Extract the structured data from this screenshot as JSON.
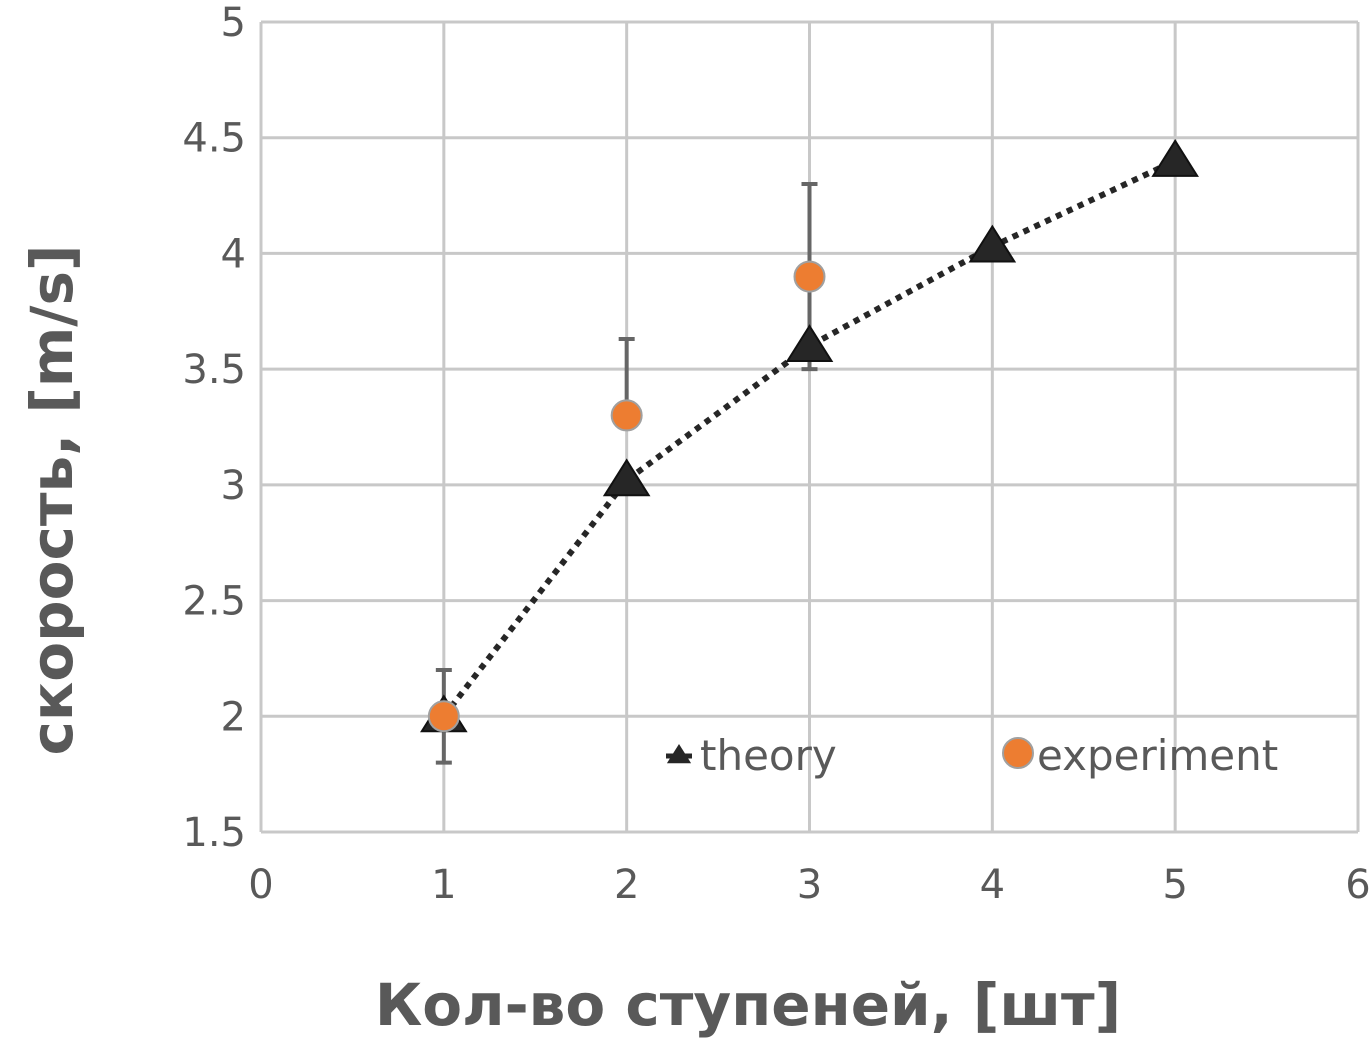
{
  "chart_data": {
    "type": "scatter",
    "title": "",
    "xlabel": "Кол-во ступеней, [шт]",
    "ylabel": "скорость, [m/s]",
    "xlim": [
      0,
      6
    ],
    "ylim": [
      1.5,
      5
    ],
    "xticks": [
      0,
      1,
      2,
      3,
      4,
      5,
      6
    ],
    "yticks": [
      1.5,
      2,
      2.5,
      3,
      3.5,
      4,
      4.5,
      5
    ],
    "xtick_labels": [
      "0",
      "1",
      "2",
      "3",
      "4",
      "5",
      "6"
    ],
    "ytick_labels": [
      "1.5",
      "2",
      "2.5",
      "3",
      "3.5",
      "4",
      "4.5",
      "5"
    ],
    "grid": true,
    "legend_position": "bottom-right",
    "series": [
      {
        "name": "theory",
        "marker": "triangle",
        "line": "dotted",
        "color": "#262626",
        "x": [
          1,
          2,
          3,
          4,
          5
        ],
        "y": [
          2.0,
          3.02,
          3.6,
          4.03,
          4.4
        ]
      },
      {
        "name": "experiment",
        "marker": "circle",
        "color": "#ED7D31",
        "x": [
          1,
          2,
          3
        ],
        "y": [
          2.0,
          3.3,
          3.9
        ],
        "error_low": [
          0.2,
          0.0,
          0.4
        ],
        "error_high": [
          0.2,
          0.33,
          0.4
        ]
      }
    ]
  }
}
